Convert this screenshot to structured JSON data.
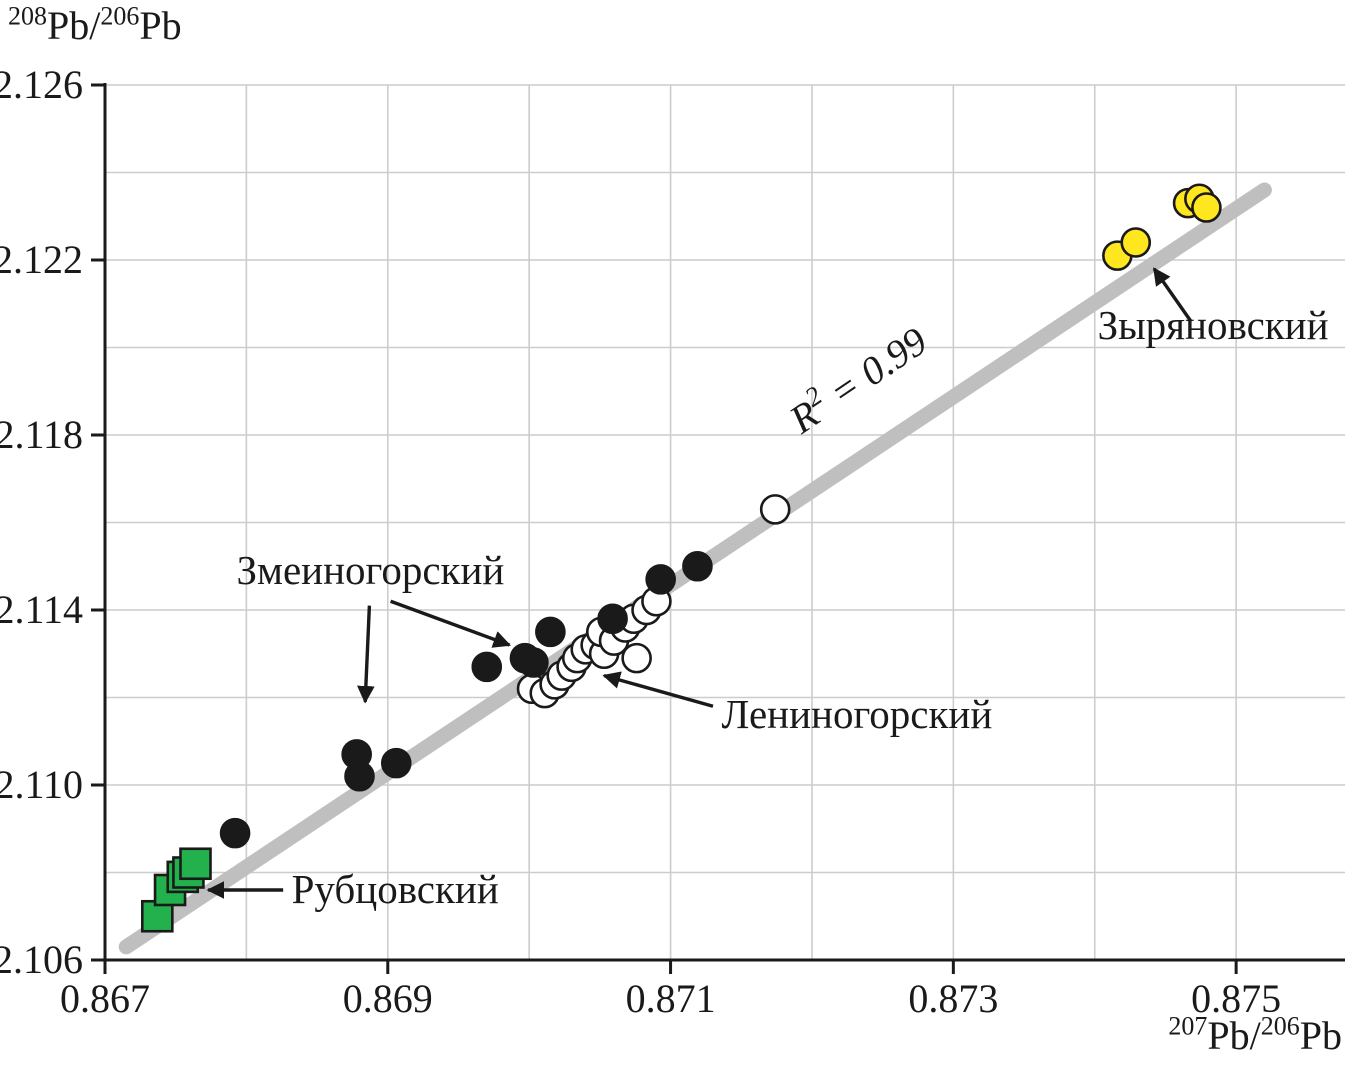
{
  "chart_data": {
    "type": "scatter",
    "title": "",
    "xlabel": {
      "sup1": "207",
      "base1": "Pb/",
      "sup2": "206",
      "base2": "Pb"
    },
    "ylabel": {
      "sup1": "208",
      "base1": "Pb/",
      "sup2": "206",
      "base2": "Pb"
    },
    "xlim": [
      0.867,
      0.87577
    ],
    "ylim": [
      2.106,
      2.126
    ],
    "x_ticks": [
      0.867,
      0.869,
      0.871,
      0.873,
      0.875
    ],
    "x_tick_labels": [
      "0.867",
      "0.869",
      "0.871",
      "0.873",
      "0.875"
    ],
    "y_ticks": [
      2.106,
      2.11,
      2.114,
      2.118,
      2.122,
      2.126
    ],
    "y_tick_labels": [
      "2.106",
      "2.110",
      "2.114",
      "2.118",
      "2.122",
      "2.126"
    ],
    "x_grid": [
      0.868,
      0.869,
      0.87,
      0.871,
      0.872,
      0.873,
      0.874,
      0.875
    ],
    "y_grid": [
      2.108,
      2.11,
      2.112,
      2.114,
      2.116,
      2.118,
      2.12,
      2.122,
      2.124,
      2.126
    ],
    "grid_on": true,
    "legend": "none",
    "colors": {
      "grid": "#cccccc",
      "axis": "#1a1a1a",
      "trend": "#bfbfbf",
      "black_marker": "#1a1a1a",
      "white_marker": "#ffffff",
      "yellow_marker": "#ffe71f",
      "green_marker": "#22b14c"
    },
    "trend_line": {
      "x1": 0.86715,
      "y1": 2.1063,
      "x2": 0.8752,
      "y2": 2.1236,
      "label": {
        "pre": "R",
        "sup": "2",
        "post": " = 0.99"
      },
      "label_x": 0.87238,
      "label_y": 2.119,
      "label_rotation": -34
    },
    "series": [
      {
        "name": "Рубцовский",
        "marker": "square",
        "fill": "#22b14c",
        "stroke": "#1a1a1a",
        "points": [
          [
            0.86737,
            2.107
          ],
          [
            0.86746,
            2.1076
          ],
          [
            0.86755,
            2.1079
          ],
          [
            0.86759,
            2.108
          ],
          [
            0.86764,
            2.1082
          ]
        ]
      },
      {
        "name": "Лениногорский",
        "marker": "circle",
        "fill": "#ffffff",
        "stroke": "#1a1a1a",
        "points": [
          [
            0.87002,
            2.1122
          ],
          [
            0.87011,
            2.1121
          ],
          [
            0.87018,
            2.1123
          ],
          [
            0.87023,
            2.1125
          ],
          [
            0.8703,
            2.1127
          ],
          [
            0.87034,
            2.1129
          ],
          [
            0.8704,
            2.1131
          ],
          [
            0.87047,
            2.1132
          ],
          [
            0.87053,
            2.113
          ],
          [
            0.87051,
            2.1135
          ],
          [
            0.8706,
            2.1133
          ],
          [
            0.87068,
            2.1136
          ],
          [
            0.87074,
            2.1138
          ],
          [
            0.87083,
            2.114
          ],
          [
            0.8709,
            2.1142
          ],
          [
            0.87076,
            2.1129
          ],
          [
            0.87174,
            2.1163
          ]
        ]
      },
      {
        "name": "Змеиногорский",
        "marker": "circle",
        "fill": "#1a1a1a",
        "stroke": "#1a1a1a",
        "points": [
          [
            0.86792,
            2.1089
          ],
          [
            0.86878,
            2.1107
          ],
          [
            0.8688,
            2.1102
          ],
          [
            0.86906,
            2.1105
          ],
          [
            0.8697,
            2.1127
          ],
          [
            0.86997,
            2.1129
          ],
          [
            0.87003,
            2.1128
          ],
          [
            0.87015,
            2.1135
          ],
          [
            0.87059,
            2.1138
          ],
          [
            0.87093,
            2.1147
          ],
          [
            0.87119,
            2.115
          ]
        ]
      },
      {
        "name": "Зыряновский",
        "marker": "circle",
        "fill": "#ffe71f",
        "stroke": "#1a1a1a",
        "points": [
          [
            0.87416,
            2.1221
          ],
          [
            0.87429,
            2.1224
          ],
          [
            0.87466,
            2.1233
          ],
          [
            0.87474,
            2.1234
          ],
          [
            0.87479,
            2.1232
          ]
        ]
      }
    ],
    "annotations": [
      {
        "id": "zyryanovsky-label",
        "text": "Зыряновский",
        "x": 0.87402,
        "y": 2.1202,
        "anchor": "start",
        "arrows": [
          {
            "x1": 0.87468,
            "y1": 2.1206,
            "x2": 0.87442,
            "y2": 2.1218
          }
        ]
      },
      {
        "id": "zmeinogorsky-label",
        "text": "Змеиногорский",
        "x": 0.86793,
        "y": 2.1146,
        "anchor": "start",
        "arrows": [
          {
            "x1": 0.86887,
            "y1": 2.1141,
            "x2": 0.86884,
            "y2": 2.1119
          },
          {
            "x1": 0.86902,
            "y1": 2.1142,
            "x2": 0.86986,
            "y2": 2.1132
          }
        ]
      },
      {
        "id": "leninogorsky-label",
        "text": "Лениногорский",
        "x": 0.87136,
        "y": 2.1113,
        "anchor": "start",
        "arrows": [
          {
            "x1": 0.8713,
            "y1": 2.1118,
            "x2": 0.87053,
            "y2": 2.1125
          }
        ]
      },
      {
        "id": "rubtsovsky-label",
        "text": "Рубцовский",
        "x": 0.86832,
        "y": 2.1073,
        "anchor": "start",
        "arrows": [
          {
            "x1": 0.86826,
            "y1": 2.1076,
            "x2": 0.86773,
            "y2": 2.1076
          }
        ]
      }
    ]
  }
}
